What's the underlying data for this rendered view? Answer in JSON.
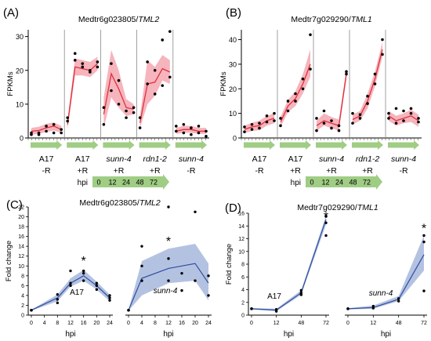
{
  "colors": {
    "red_line": "#e0303a",
    "red_band": "#f6b4bd",
    "blue_line": "#2f4f9e",
    "blue_band": "#b4c2e2",
    "arrow_green": "#9fcd84",
    "points": "#000000",
    "divider": "#888888"
  },
  "chart_data": [
    {
      "panel": "(A)",
      "title_gene": "Medtr6g023805/",
      "title_italic": "TML2",
      "type": "line",
      "ylabel": "FPKMs",
      "ylim": [
        0,
        32
      ],
      "yticks": [
        0,
        10,
        20,
        30
      ],
      "hpi": [
        0,
        12,
        24,
        48,
        72
      ],
      "groups": [
        {
          "label1": "A17",
          "label2": "-R",
          "italic": false,
          "mean": [
            2.0,
            2.2,
            3.0,
            3.5,
            2.5
          ],
          "lower": [
            1.0,
            1.2,
            1.8,
            2.2,
            1.5
          ],
          "upper": [
            3.0,
            3.3,
            4.2,
            4.6,
            3.6
          ],
          "points": [
            [
              0,
              1.5
            ],
            [
              0,
              1.0
            ],
            [
              12,
              1.5
            ],
            [
              12,
              1.0
            ],
            [
              24,
              3.5
            ],
            [
              24,
              2.0
            ],
            [
              48,
              4.0
            ],
            [
              48,
              1.5
            ],
            [
              72,
              2.5
            ],
            [
              72,
              1.5
            ]
          ]
        },
        {
          "label1": "A17",
          "label2": "+R",
          "italic": false,
          "mean": [
            4.0,
            21.0,
            20.5,
            20.0,
            22.0
          ],
          "lower": [
            2.5,
            18.5,
            18.5,
            18.0,
            20.0
          ],
          "upper": [
            5.5,
            23.5,
            23.0,
            22.5,
            24.0
          ],
          "points": [
            [
              0,
              6.0
            ],
            [
              0,
              5.0
            ],
            [
              12,
              25.0
            ],
            [
              12,
              23.0
            ],
            [
              24,
              22.0
            ],
            [
              24,
              21.0
            ],
            [
              48,
              19.5
            ],
            [
              48,
              20.0
            ],
            [
              72,
              21.0
            ],
            [
              72,
              22.5
            ]
          ]
        },
        {
          "label1": "sunn-4",
          "label2": "+R",
          "italic": true,
          "mean": [
            7.0,
            19.0,
            14.5,
            9.0,
            8.5
          ],
          "lower": [
            3.0,
            12.0,
            9.0,
            6.5,
            7.0
          ],
          "upper": [
            12.0,
            26.0,
            20.0,
            11.5,
            10.0
          ],
          "points": [
            [
              0,
              4.0
            ],
            [
              0,
              9.0
            ],
            [
              12,
              22.0
            ],
            [
              12,
              14.0
            ],
            [
              24,
              17.0
            ],
            [
              24,
              10.0
            ],
            [
              48,
              8.0
            ],
            [
              48,
              6.0
            ],
            [
              72,
              9.0
            ],
            [
              72,
              7.5
            ]
          ]
        },
        {
          "label1": "rdn1-2",
          "label2": "+R",
          "italic": true,
          "mean": [
            4.5,
            16.0,
            16.5,
            20.5,
            19.5
          ],
          "lower": [
            3.0,
            10.0,
            12.5,
            17.0,
            16.0
          ],
          "upper": [
            6.5,
            23.0,
            21.0,
            24.5,
            23.0
          ],
          "points": [
            [
              0,
              3.0
            ],
            [
              0,
              6.0
            ],
            [
              12,
              22.5
            ],
            [
              12,
              16.0
            ],
            [
              24,
              20.0
            ],
            [
              24,
              13.0
            ],
            [
              48,
              29.0
            ],
            [
              48,
              15.5
            ],
            [
              72,
              31.5
            ],
            [
              72,
              18.0
            ]
          ]
        },
        {
          "label1": "sunn-4",
          "label2": "-R",
          "italic": true,
          "mean": [
            2.0,
            2.5,
            2.5,
            2.0,
            2.0
          ],
          "lower": [
            1.2,
            1.5,
            1.5,
            1.2,
            1.2
          ],
          "upper": [
            3.0,
            3.6,
            3.6,
            3.0,
            3.0
          ],
          "points": [
            [
              0,
              2.0
            ],
            [
              0,
              3.5
            ],
            [
              12,
              4.0
            ],
            [
              12,
              1.5
            ],
            [
              24,
              3.0
            ],
            [
              24,
              1.0
            ],
            [
              48,
              3.5
            ],
            [
              48,
              1.5
            ],
            [
              72,
              2.0
            ],
            [
              72,
              0.5
            ]
          ]
        }
      ]
    },
    {
      "panel": "(B)",
      "title_gene": "Medtr7g029290/",
      "title_italic": "TML1",
      "type": "line",
      "ylabel": "FPKMs",
      "ylim": [
        0,
        44
      ],
      "yticks": [
        0,
        10,
        20,
        30,
        40
      ],
      "hpi": [
        0,
        12,
        24,
        48,
        72
      ],
      "groups": [
        {
          "label1": "A17",
          "label2": "-R",
          "italic": false,
          "mean": [
            3.5,
            4.5,
            5.0,
            7.0,
            8.0
          ],
          "lower": [
            2.0,
            2.8,
            3.2,
            5.0,
            6.0
          ],
          "upper": [
            5.0,
            6.2,
            7.0,
            9.0,
            10.0
          ],
          "points": [
            [
              0,
              2.5
            ],
            [
              0,
              4.5
            ],
            [
              12,
              3.5
            ],
            [
              12,
              5.5
            ],
            [
              24,
              6.0
            ],
            [
              24,
              4.0
            ],
            [
              48,
              9.0
            ],
            [
              48,
              6.5
            ],
            [
              72,
              10.0
            ],
            [
              72,
              7.0
            ]
          ]
        },
        {
          "label1": "A17",
          "label2": "+R",
          "italic": false,
          "mean": [
            6.5,
            13.0,
            16.0,
            22.0,
            30.0
          ],
          "lower": [
            4.5,
            10.5,
            13.0,
            18.0,
            25.0
          ],
          "upper": [
            8.5,
            15.5,
            19.0,
            26.0,
            36.0
          ],
          "points": [
            [
              0,
              5.0
            ],
            [
              0,
              8.0
            ],
            [
              12,
              11.0
            ],
            [
              12,
              15.0
            ],
            [
              24,
              15.0
            ],
            [
              24,
              18.0
            ],
            [
              48,
              20.0
            ],
            [
              48,
              24.0
            ],
            [
              72,
              42.0
            ],
            [
              72,
              28.0
            ]
          ]
        },
        {
          "label1": "sunn-4",
          "label2": "+R",
          "italic": true,
          "mean": [
            5.0,
            7.0,
            6.0,
            5.0,
            26.0
          ],
          "lower": [
            3.0,
            5.0,
            4.0,
            3.0,
            24.0
          ],
          "upper": [
            7.0,
            10.0,
            8.5,
            7.5,
            28.0
          ],
          "points": [
            [
              0,
              3.0
            ],
            [
              0,
              8.0
            ],
            [
              12,
              11.0
            ],
            [
              12,
              6.0
            ],
            [
              24,
              7.0
            ],
            [
              24,
              4.0
            ],
            [
              48,
              5.0
            ],
            [
              48,
              3.0
            ],
            [
              72,
              27.0
            ],
            [
              72,
              26.0
            ]
          ]
        },
        {
          "label1": "rdn1-2",
          "label2": "+R",
          "italic": true,
          "mean": [
            7.5,
            9.0,
            15.0,
            24.0,
            36.0
          ],
          "lower": [
            5.5,
            7.0,
            12.0,
            21.0,
            33.0
          ],
          "upper": [
            9.5,
            11.0,
            18.0,
            27.0,
            39.0
          ],
          "points": [
            [
              0,
              6.0
            ],
            [
              0,
              10.0
            ],
            [
              12,
              8.0
            ],
            [
              12,
              9.5
            ],
            [
              24,
              14.0
            ],
            [
              24,
              17.0
            ],
            [
              48,
              22.0
            ],
            [
              48,
              26.0
            ],
            [
              72,
              40.0
            ],
            [
              72,
              34.0
            ]
          ]
        },
        {
          "label1": "sunn-4",
          "label2": "-R",
          "italic": true,
          "mean": [
            9.0,
            7.0,
            8.0,
            9.0,
            7.0
          ],
          "lower": [
            7.0,
            5.0,
            6.0,
            6.5,
            4.5
          ],
          "upper": [
            11.0,
            9.0,
            10.0,
            11.5,
            9.5
          ],
          "points": [
            [
              0,
              10.0
            ],
            [
              0,
              8.0
            ],
            [
              12,
              6.0
            ],
            [
              12,
              12.0
            ],
            [
              24,
              11.0
            ],
            [
              24,
              7.0
            ],
            [
              48,
              12.0
            ],
            [
              48,
              10.0
            ],
            [
              72,
              8.0
            ],
            [
              72,
              6.5
            ]
          ]
        }
      ]
    },
    {
      "panel": "(C)",
      "title_gene": "Medtr6g023805/",
      "title_italic": "TML2",
      "type": "line",
      "ylabel": "Fold change",
      "xlabel": "hpi",
      "ylim": [
        0,
        22
      ],
      "yticks": [
        0,
        2,
        4,
        6,
        8,
        10,
        12,
        14,
        16,
        18,
        20,
        22
      ],
      "xticks": [
        0,
        4,
        8,
        12,
        16,
        20,
        24
      ],
      "subplots": [
        {
          "label": "A17",
          "label_italic": false,
          "star_x": 16,
          "star_y": 11.5,
          "x": [
            0,
            8,
            12,
            16,
            20,
            24
          ],
          "mean": [
            1.0,
            3.5,
            6.5,
            8.0,
            6.0,
            3.5
          ],
          "lower": [
            0.9,
            2.8,
            5.8,
            7.0,
            5.2,
            2.8
          ],
          "upper": [
            1.1,
            4.2,
            7.5,
            9.2,
            6.8,
            4.2
          ],
          "points": [
            [
              0,
              1
            ],
            [
              0,
              1
            ],
            [
              0,
              1
            ],
            [
              8,
              2.5
            ],
            [
              8,
              3.2
            ],
            [
              8,
              4.2
            ],
            [
              12,
              6.0
            ],
            [
              12,
              6.5
            ],
            [
              12,
              9.0
            ],
            [
              16,
              7.0
            ],
            [
              16,
              8.5
            ],
            [
              16,
              9.0
            ],
            [
              20,
              5.2
            ],
            [
              20,
              6.0
            ],
            [
              20,
              6.5
            ],
            [
              24,
              3.0
            ],
            [
              24,
              3.5
            ],
            [
              24,
              4.0
            ]
          ]
        },
        {
          "label": "sunn-4",
          "label_italic": true,
          "star_x": 12,
          "star_y": 15.5,
          "x": [
            0,
            4,
            12,
            20,
            24
          ],
          "mean": [
            1.0,
            7.5,
            9.5,
            10.5,
            6.5
          ],
          "lower": [
            0.9,
            4.0,
            6.5,
            7.0,
            3.0
          ],
          "upper": [
            1.1,
            11.0,
            13.5,
            14.5,
            10.5
          ],
          "points": [
            [
              0,
              1
            ],
            [
              0,
              1
            ],
            [
              0,
              1
            ],
            [
              4,
              7.0
            ],
            [
              4,
              10.0
            ],
            [
              4,
              14.0
            ],
            [
              12,
              7.0
            ],
            [
              12,
              11.5
            ],
            [
              12,
              22.0
            ],
            [
              16,
              5.0
            ],
            [
              16,
              8.5
            ],
            [
              20,
              21.0
            ],
            [
              20,
              7.0
            ],
            [
              24,
              4.0
            ],
            [
              24,
              8.0
            ]
          ]
        }
      ]
    },
    {
      "panel": "(D)",
      "title_gene": "Medtr7g029290/",
      "title_italic": "TML1",
      "type": "line",
      "ylabel": "Fold change",
      "xlabel": "hpi",
      "ylim": [
        0,
        16
      ],
      "yticks": [
        0,
        2,
        4,
        6,
        8,
        10,
        12,
        14,
        16
      ],
      "xticks": [
        0,
        12,
        48,
        72
      ],
      "subplots": [
        {
          "label": "A17",
          "label_italic": false,
          "star_x": 72,
          "star_y": 15.8,
          "x": [
            0,
            12,
            48,
            72
          ],
          "mean": [
            1.0,
            0.8,
            3.5,
            15.0
          ],
          "lower": [
            0.9,
            0.6,
            3.2,
            14.2
          ],
          "upper": [
            1.1,
            1.0,
            3.9,
            15.6
          ],
          "points": [
            [
              0,
              1
            ],
            [
              0,
              1
            ],
            [
              0,
              1
            ],
            [
              12,
              0.6
            ],
            [
              12,
              0.9
            ],
            [
              48,
              3.2
            ],
            [
              48,
              3.5
            ],
            [
              48,
              3.9
            ],
            [
              72,
              12.5
            ],
            [
              72,
              14.5
            ],
            [
              72,
              15.5
            ]
          ]
        },
        {
          "label": "sunn-4",
          "label_italic": true,
          "star_x": 72,
          "star_y": 14.0,
          "x": [
            0,
            12,
            48,
            72
          ],
          "mean": [
            1.0,
            1.2,
            2.5,
            9.5
          ],
          "lower": [
            0.9,
            1.0,
            2.2,
            7.0
          ],
          "upper": [
            1.1,
            1.5,
            3.0,
            12.5
          ],
          "points": [
            [
              0,
              1
            ],
            [
              0,
              1
            ],
            [
              0,
              1
            ],
            [
              12,
              1.1
            ],
            [
              12,
              1.4
            ],
            [
              48,
              2.2
            ],
            [
              48,
              2.6
            ],
            [
              72,
              3.8
            ],
            [
              72,
              11.5
            ],
            [
              72,
              12.5
            ]
          ]
        }
      ]
    }
  ],
  "hpi_caption": "hpi",
  "hpi_values": [
    "0",
    "12",
    "24",
    "48",
    "72"
  ]
}
